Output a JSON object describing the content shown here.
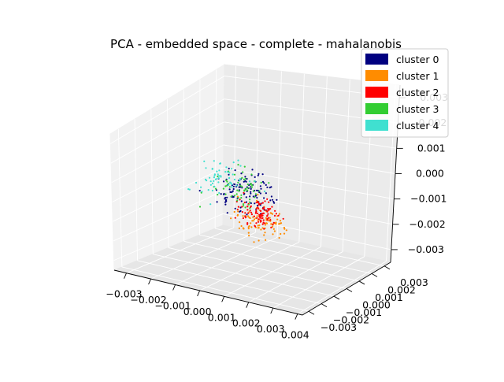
{
  "chart_data": {
    "type": "scatter",
    "title": "PCA - embedded space - complete - mahalanobis",
    "projection": "3d",
    "grid": true,
    "legend_placement": "upper-right",
    "axes": {
      "x": {
        "ticks": [
          "−0.003",
          "−0.002",
          "−0.001",
          "0.000",
          "0.001",
          "0.002",
          "0.003",
          "0.004"
        ],
        "lim": [
          -0.0035,
          0.0042
        ]
      },
      "y": {
        "ticks": [
          "−0.003",
          "−0.002",
          "−0.001",
          "0.000",
          "0.001",
          "0.002",
          "0.003"
        ],
        "lim": [
          -0.0035,
          0.0035
        ]
      },
      "z": {
        "ticks": [
          "−0.003",
          "−0.002",
          "−0.001",
          "0.000",
          "0.001",
          "0.002",
          "0.003"
        ],
        "lim": [
          -0.0035,
          0.0035
        ]
      }
    },
    "series": [
      {
        "name": "cluster 0",
        "color": "#000080"
      },
      {
        "name": "cluster 1",
        "color": "#ff8c00"
      },
      {
        "name": "cluster 2",
        "color": "#ff0000"
      },
      {
        "name": "cluster 3",
        "color": "#32cd32"
      },
      {
        "name": "cluster 4",
        "color": "#40e0d0"
      }
    ],
    "points_per_series": [
      120,
      90,
      100,
      60,
      60
    ]
  }
}
